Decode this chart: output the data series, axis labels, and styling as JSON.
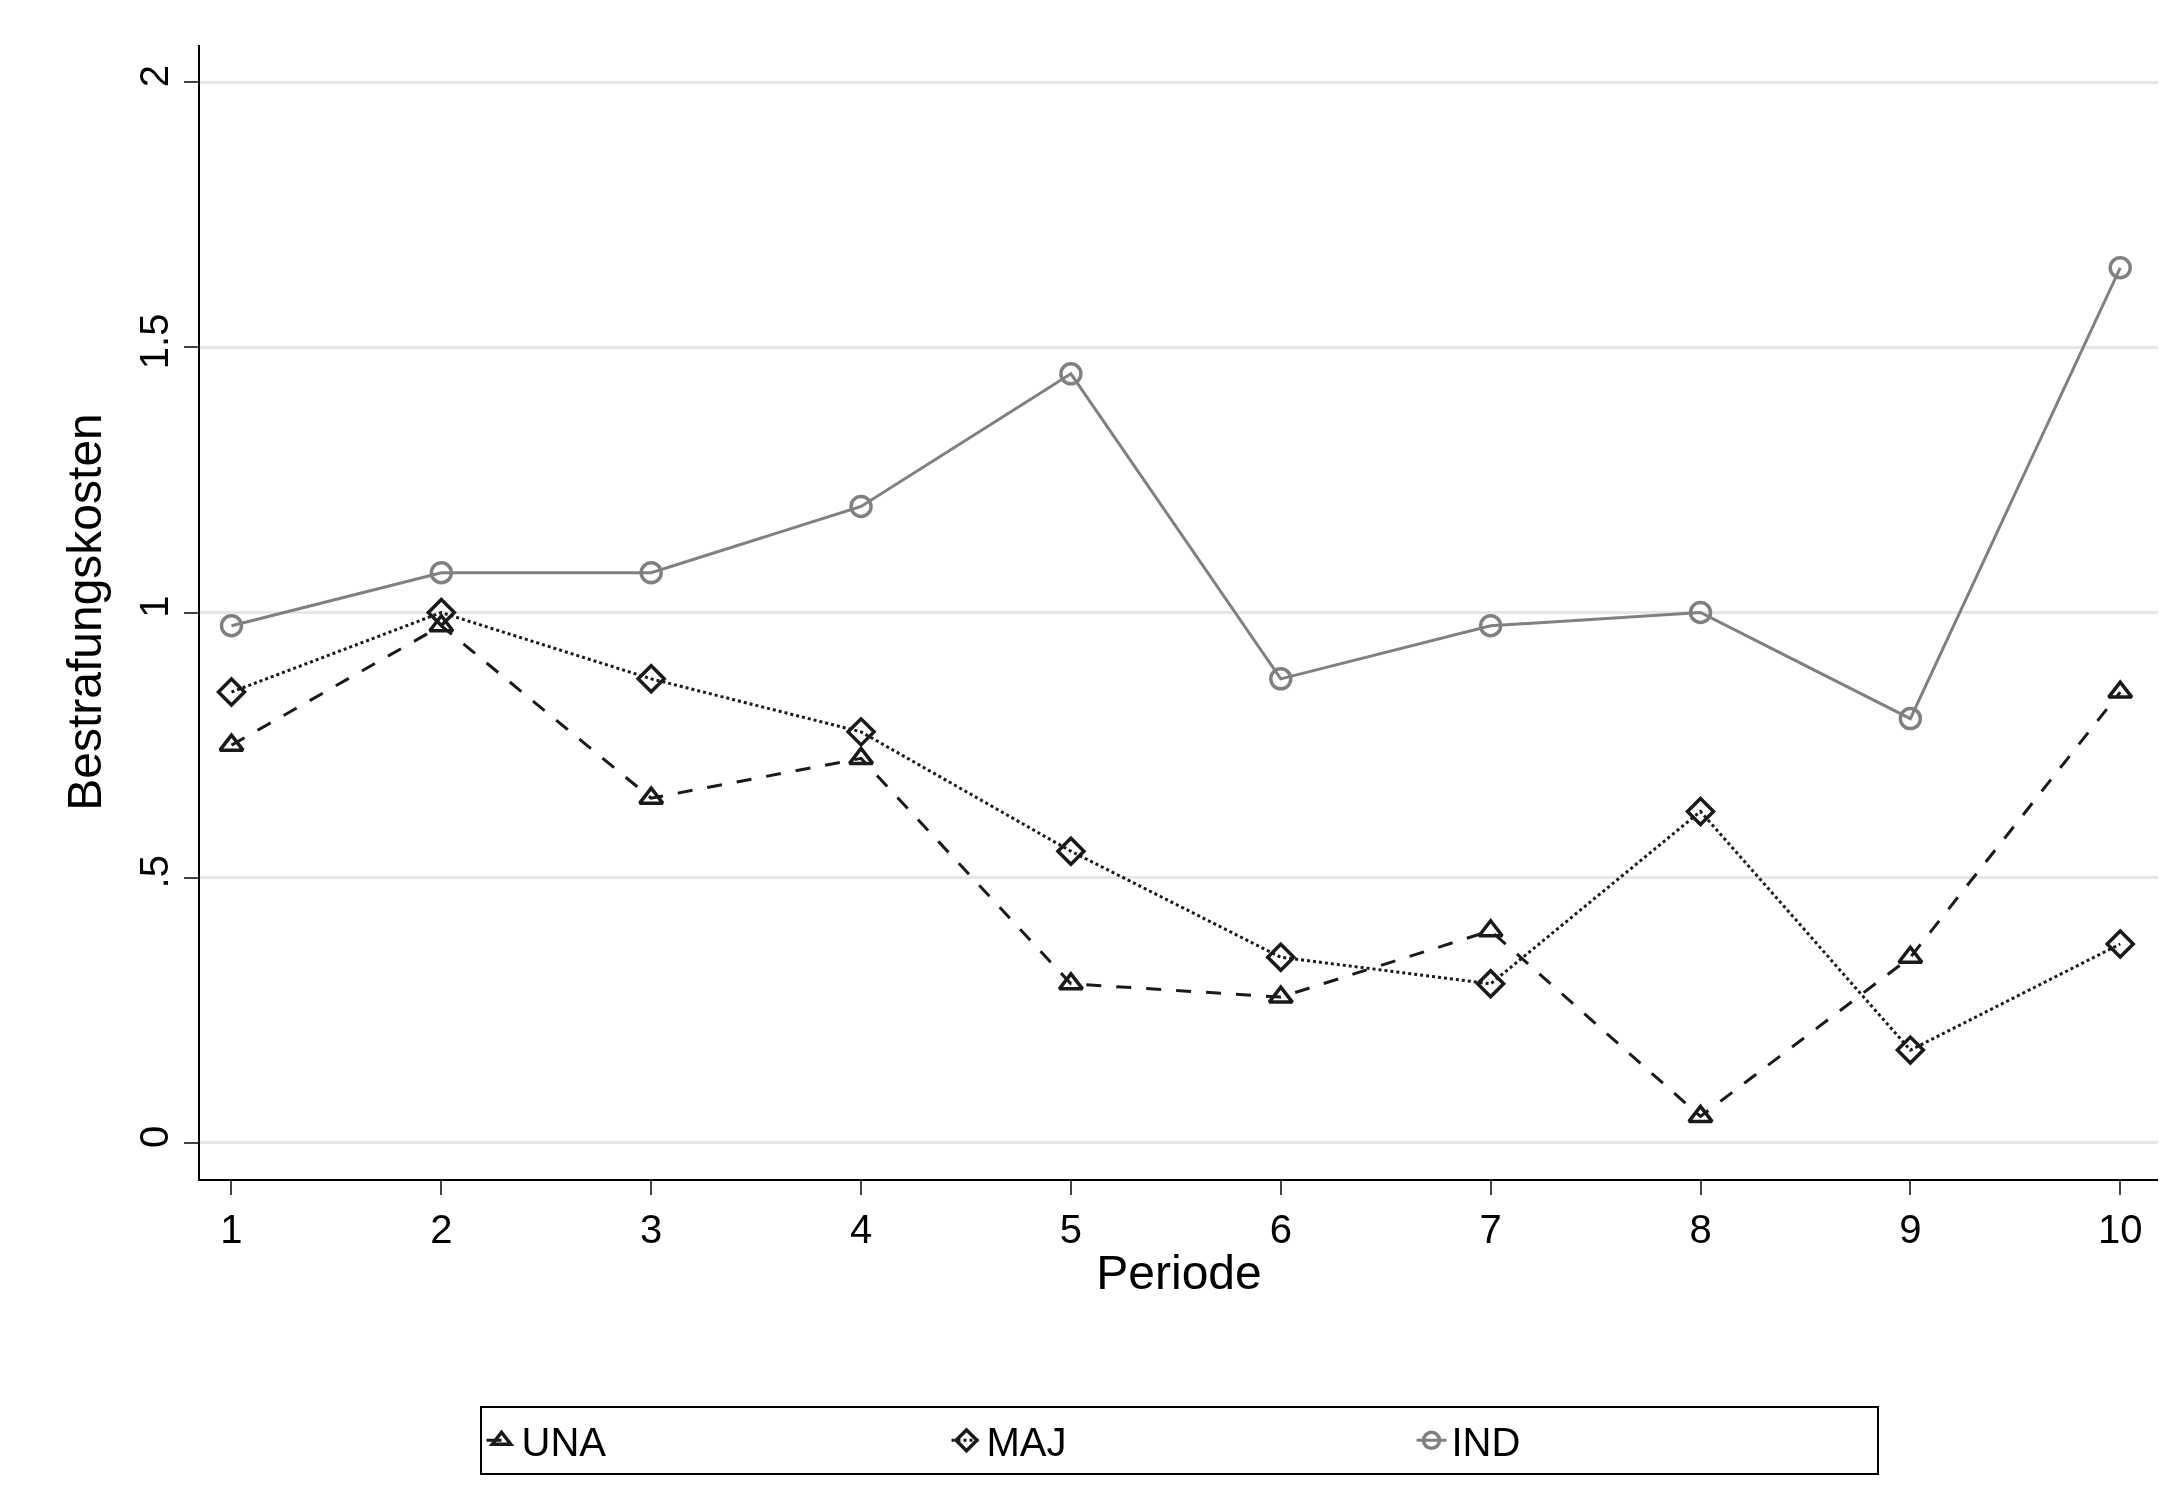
{
  "chart_data": {
    "type": "line",
    "xlabel": "Periode",
    "ylabel": "Bestrafungskosten",
    "x": [
      1,
      2,
      3,
      4,
      5,
      6,
      7,
      8,
      9,
      10
    ],
    "series": [
      {
        "name": "UNA",
        "color": "#1a1a1a",
        "marker": "triangle",
        "line_style": "dashed",
        "values": [
          0.75,
          0.975,
          0.65,
          0.725,
          0.3,
          0.275,
          0.4,
          0.05,
          0.35,
          0.85
        ]
      },
      {
        "name": "MAJ",
        "color": "#1a1a1a",
        "marker": "diamond",
        "line_style": "dotted",
        "values": [
          0.85,
          1.0,
          0.875,
          0.775,
          0.55,
          0.35,
          0.3,
          0.625,
          0.175,
          0.375
        ]
      },
      {
        "name": "IND",
        "color": "#808080",
        "marker": "circle",
        "line_style": "solid",
        "values": [
          0.975,
          1.075,
          1.075,
          1.2,
          1.45,
          0.875,
          0.975,
          1.0,
          0.8,
          1.65
        ]
      }
    ],
    "xlim": [
      0.85,
      10.18
    ],
    "xticks": [
      1,
      2,
      3,
      4,
      5,
      6,
      7,
      8,
      9,
      10
    ],
    "ylim": [
      -0.068,
      2.07
    ],
    "yticks": [
      {
        "value": 0,
        "label": "0"
      },
      {
        "value": 0.5,
        "label": ".5"
      },
      {
        "value": 1,
        "label": "1"
      },
      {
        "value": 1.5,
        "label": "1.5"
      },
      {
        "value": 2,
        "label": "2"
      }
    ],
    "grid": "y",
    "legend": "bottom"
  }
}
